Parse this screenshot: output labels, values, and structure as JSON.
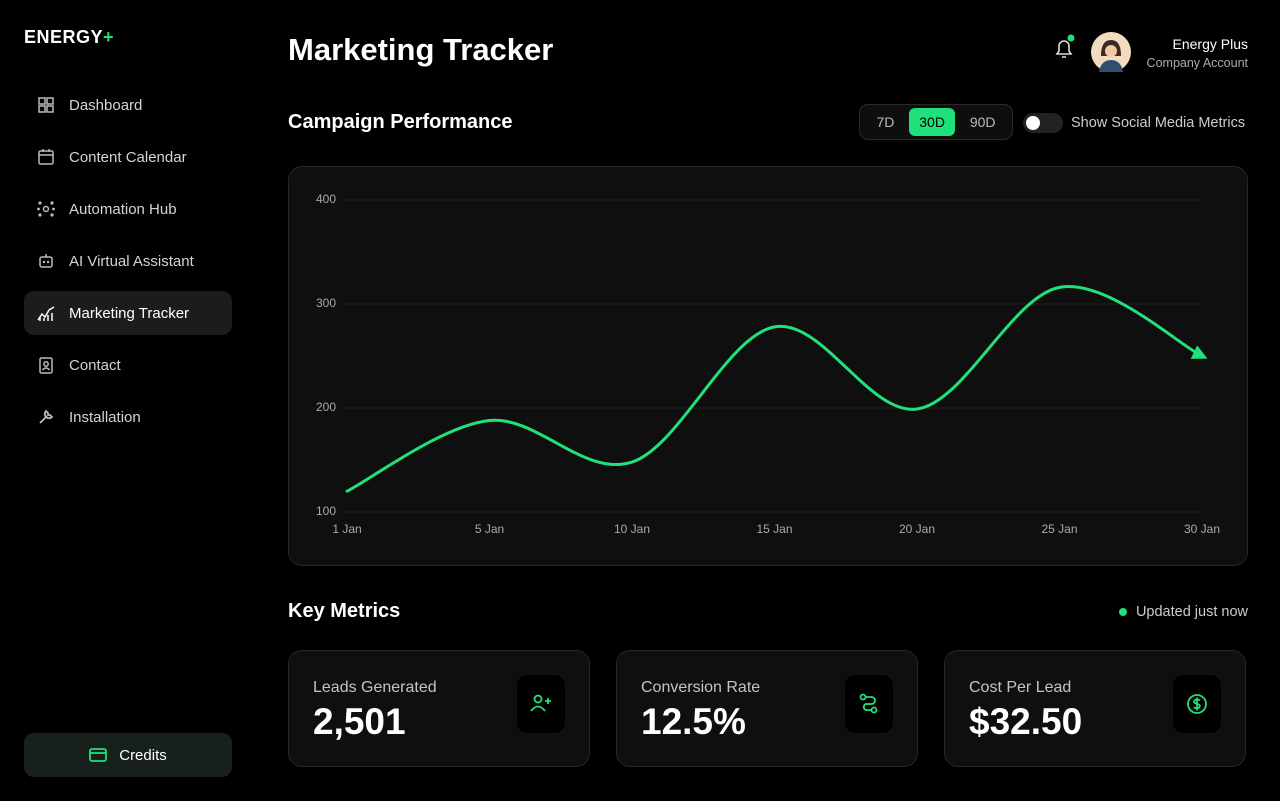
{
  "sidebar": {
    "brand": "ENERGY",
    "brand_accent": "+",
    "nav": [
      {
        "label": "Dashboard",
        "active": false
      },
      {
        "label": "Content Calendar",
        "active": false
      },
      {
        "label": "Automation Hub",
        "active": false
      },
      {
        "label": "AI Virtual Assistant",
        "active": false
      },
      {
        "label": "Marketing Tracker",
        "active": true
      },
      {
        "label": "Contact",
        "active": false
      },
      {
        "label": "Installation",
        "active": false
      }
    ],
    "credits": "Credits"
  },
  "header": {
    "title": "Marketing Tracker",
    "user_name": "Energy Plus",
    "user_role": "Company Account"
  },
  "campaign": {
    "title": "Campaign Performance",
    "ranges": [
      {
        "label": "7D",
        "active": false
      },
      {
        "label": "30D",
        "active": true
      },
      {
        "label": "90D",
        "active": false
      }
    ],
    "toggle_label": "Show Social Media Metrics"
  },
  "chart_data": {
    "type": "line",
    "categories": [
      "1 Jan",
      "5 Jan",
      "10 Jan",
      "15 Jan",
      "20 Jan",
      "25 Jan",
      "30 Jan"
    ],
    "values": [
      120,
      188,
      148,
      278,
      199,
      316,
      250
    ],
    "color": "#22e07a",
    "ylim": [
      100,
      400
    ],
    "yticks": [
      100,
      200,
      300,
      400
    ],
    "grid": true
  },
  "metrics": {
    "title": "Key Metrics",
    "status": "Updated just now",
    "cards": [
      {
        "label": "Leads Generated",
        "value": "2,501"
      },
      {
        "label": "Conversion Rate",
        "value": "12.5%"
      },
      {
        "label": "Cost Per Lead",
        "value": "$32.50"
      }
    ]
  }
}
